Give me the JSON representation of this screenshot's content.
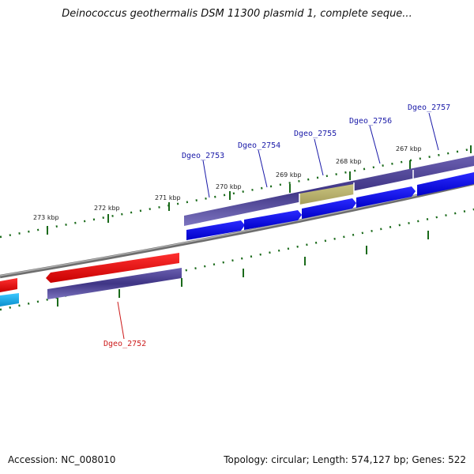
{
  "title": "Deinococcus geothermalis DSM 11300 plasmid 1, complete seque...",
  "footer": {
    "accession_label": "Accession: ",
    "accession": "NC_008010",
    "topology_label": "Topology: ",
    "topology": "circular",
    "length_label": "Length: ",
    "length": "574,127 bp",
    "genes_label": "Genes: ",
    "genes": "522"
  },
  "ruler_labels": [
    "273 kbp",
    "272 kbp",
    "271 kbp",
    "270 kbp",
    "269 kbp",
    "268 kbp",
    "267 kbp"
  ],
  "gene_labels": [
    {
      "name": "Dgeo_2753",
      "color": "#1a1aa8"
    },
    {
      "name": "Dgeo_2754",
      "color": "#1a1aa8"
    },
    {
      "name": "Dgeo_2755",
      "color": "#1a1aa8"
    },
    {
      "name": "Dgeo_2756",
      "color": "#1a1aa8"
    },
    {
      "name": "Dgeo_2757",
      "color": "#1a1aa8"
    },
    {
      "name": "Dgeo_2752",
      "color": "#cc1a1a"
    }
  ],
  "colors": {
    "gene_track": "#4a3f8c",
    "cds_forward": "#0a0ae0",
    "highlight": "#b8b070",
    "reverse": "#e00000",
    "cyan": "#1aa8e0",
    "backbone": "#808080",
    "tick": "#1a6a1a"
  }
}
